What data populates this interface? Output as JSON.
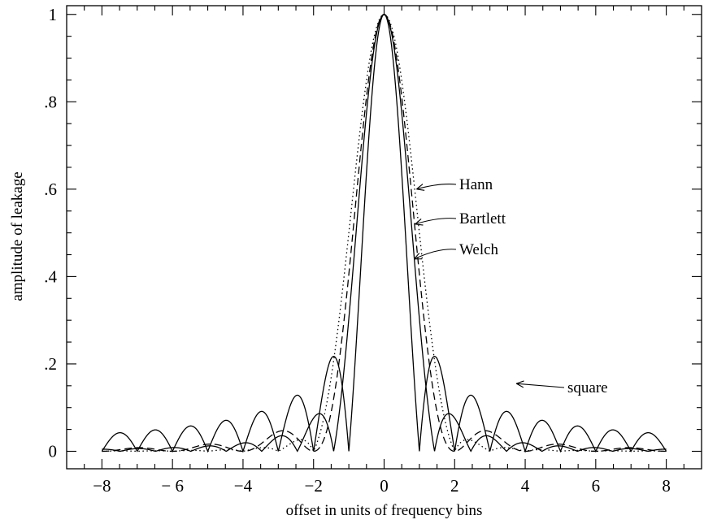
{
  "chart_data": {
    "type": "line",
    "title": "",
    "xlabel": "offset in units of frequency bins",
    "ylabel": "amplitude of leakage",
    "xlim": [
      -9,
      9
    ],
    "ylim": [
      -0.04,
      1.02
    ],
    "x_ticks": [
      -8,
      -6,
      -4,
      -2,
      0,
      2,
      4,
      6,
      8
    ],
    "x_tick_labels": [
      "−8",
      "− 6",
      "−4",
      "−2",
      "0",
      "2",
      "4",
      "6",
      "8"
    ],
    "y_ticks": [
      0,
      0.2,
      0.4,
      0.6,
      0.8,
      1.0
    ],
    "y_tick_labels": [
      "0",
      ".2",
      ".4",
      ".6",
      ".8",
      "1"
    ],
    "grid": false,
    "legend": "none",
    "series_samples": {
      "x": [
        0,
        0.25,
        0.5,
        0.75,
        1.0,
        1.25,
        1.5,
        2.0,
        2.5,
        3.0,
        3.5,
        4.0
      ],
      "note_values": "amplitude of leakage at the listed offsets"
    },
    "series": [
      {
        "name": "square",
        "line_style": "solid",
        "label_x": 3.75,
        "label_y": 0.155,
        "values": [
          1.0,
          0.9,
          0.637,
          0.3,
          0.0,
          0.18,
          0.212,
          0.0,
          0.127,
          0.0,
          0.091,
          0.0
        ]
      },
      {
        "name": "Welch",
        "line_style": "solid",
        "label_x": 0.85,
        "label_y": 0.44,
        "values": [
          1.0,
          0.93,
          0.75,
          0.48,
          0.3,
          0.12,
          0.03,
          0.02,
          0.03,
          0.0,
          0.01,
          0.0
        ]
      },
      {
        "name": "Bartlett",
        "line_style": "dashed",
        "label_x": 0.88,
        "label_y": 0.52,
        "values": [
          1.0,
          0.94,
          0.81,
          0.6,
          0.41,
          0.22,
          0.09,
          0.0,
          0.06,
          0.0,
          0.02,
          0.0
        ]
      },
      {
        "name": "Hann",
        "line_style": "dotted",
        "label_x": 0.92,
        "label_y": 0.6,
        "values": [
          1.0,
          0.96,
          0.85,
          0.7,
          0.5,
          0.31,
          0.15,
          0.0,
          0.02,
          0.0,
          0.005,
          0.0
        ]
      }
    ],
    "annotations": [
      {
        "text": "Hann",
        "target_series": "Hann"
      },
      {
        "text": "Bartlett",
        "target_series": "Bartlett"
      },
      {
        "text": "Welch",
        "target_series": "Welch"
      },
      {
        "text": "square",
        "target_series": "square"
      }
    ]
  }
}
